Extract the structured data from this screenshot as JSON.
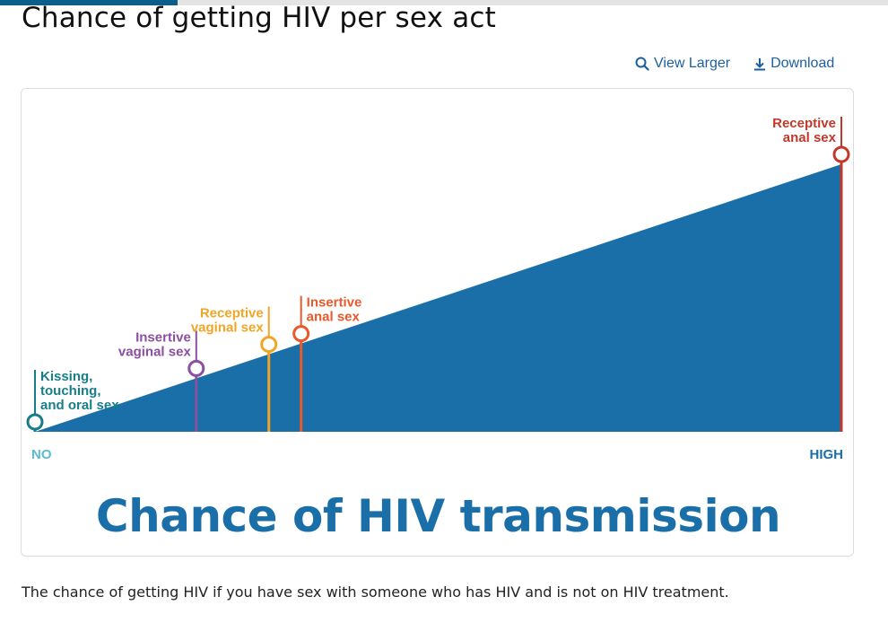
{
  "page": {
    "title": "Chance of getting HIV per sex act",
    "caption": "The chance of getting HIV if you have sex with someone who has HIV and is not on HIV treatment."
  },
  "actions": {
    "view_larger": "View Larger",
    "download": "Download"
  },
  "icons": {
    "view_larger": "magnifier-icon",
    "download": "download-icon"
  },
  "colors": {
    "area": "#1b6fa8",
    "axis_no": "#5bbad5",
    "axis_high": "#1b6fa8",
    "title": "#1b6fa8"
  },
  "chart_data": {
    "type": "area",
    "title": "Chance of HIV transmission",
    "x_axis": {
      "min_label": "NO",
      "max_label": "HIGH"
    },
    "scale": [
      0,
      1
    ],
    "markers": [
      {
        "lines": [
          "Kissing,",
          "touching,",
          "and oral sex"
        ],
        "position": 0.0,
        "color": "#177e89",
        "label_side": "right"
      },
      {
        "lines": [
          "Insertive",
          "vaginal sex"
        ],
        "position": 0.2,
        "color": "#8a4fa0",
        "label_side": "left"
      },
      {
        "lines": [
          "Receptive",
          "vaginal sex"
        ],
        "position": 0.29,
        "color": "#f0a526",
        "label_side": "left"
      },
      {
        "lines": [
          "Insertive",
          "anal sex"
        ],
        "position": 0.33,
        "color": "#e8592b",
        "label_side": "right"
      },
      {
        "lines": [
          "Receptive",
          "anal sex"
        ],
        "position": 1.0,
        "color": "#c0392b",
        "label_side": "left"
      }
    ]
  }
}
